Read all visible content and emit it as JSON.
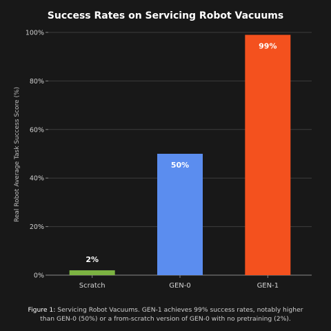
{
  "chart_data": {
    "type": "bar",
    "title": "Success Rates on Servicing Robot Vacuums",
    "ylabel": "Real Robot Average Task Success Score (%)",
    "xlabel": "",
    "ylim": [
      0,
      100
    ],
    "yticks": [
      0,
      20,
      40,
      60,
      80,
      100
    ],
    "ytick_labels": [
      "0%",
      "20%",
      "40%",
      "60%",
      "80%",
      "100%"
    ],
    "grid": true,
    "categories": [
      "Scratch",
      "GEN-0",
      "GEN-1"
    ],
    "values": [
      2,
      50,
      99
    ],
    "value_labels": [
      "2%",
      "50%",
      "99%"
    ],
    "colors": [
      "#7cb342",
      "#5b8def",
      "#f4511e"
    ],
    "value_label_position": [
      "above",
      "inside",
      "inside"
    ]
  },
  "caption": {
    "figure_label": "Figure 1:",
    "text_line1": " Servicing Robot Vacuums. GEN-1 achieves 99% success rates, notably higher",
    "text_line2": "than GEN-0 (50%) or a from-scratch version of GEN-0 with no pretraining (2%)."
  }
}
